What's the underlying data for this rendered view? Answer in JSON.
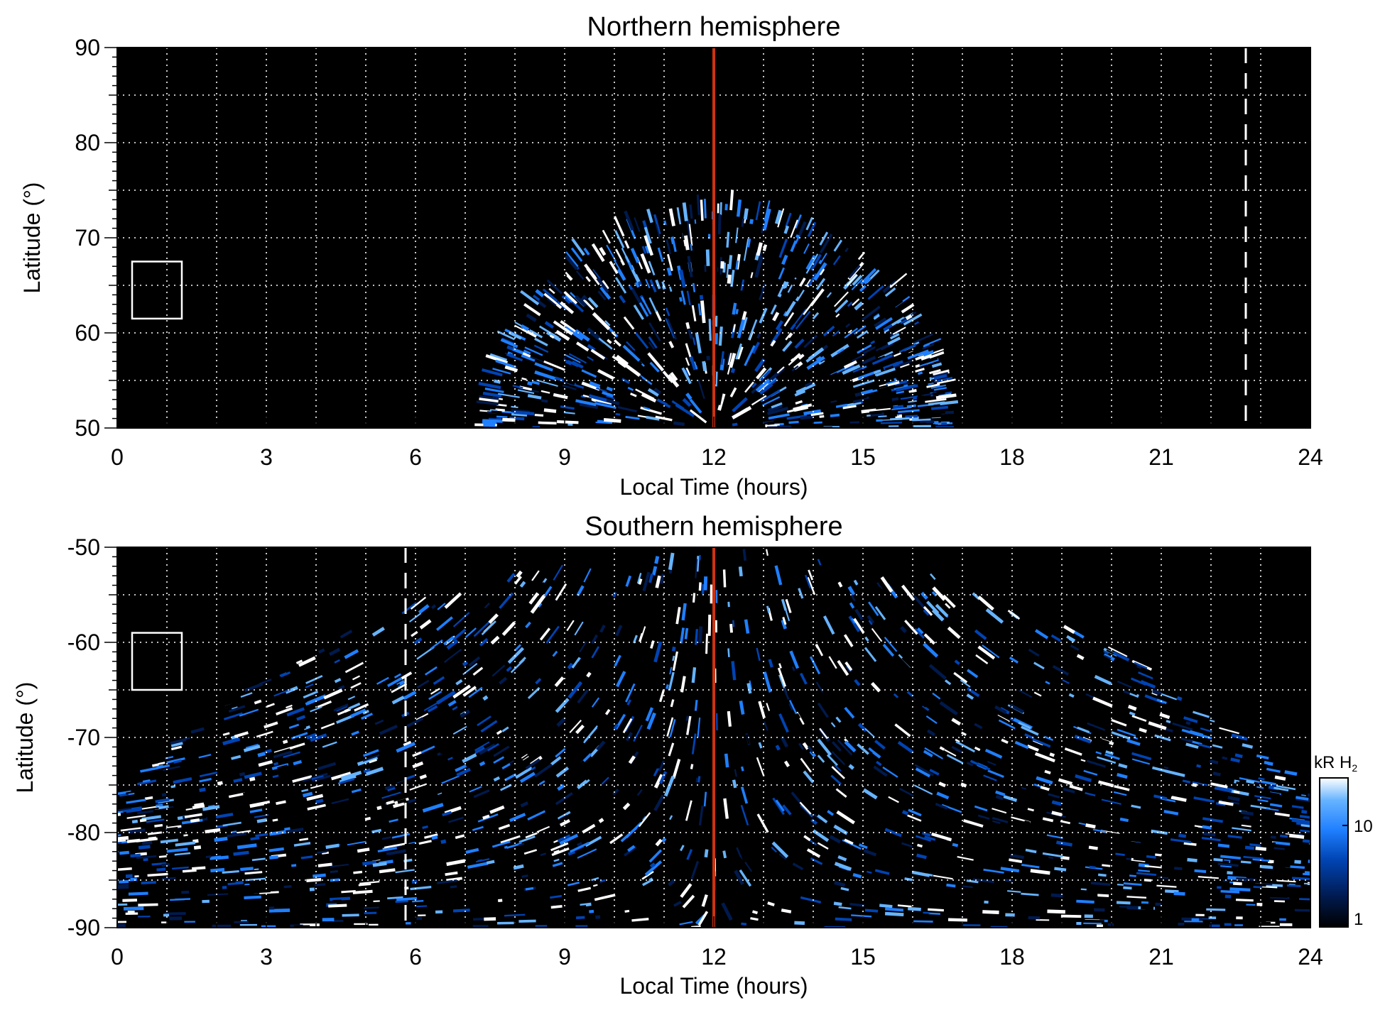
{
  "chart_data": [
    {
      "type": "heatmap",
      "title": "Northern hemisphere",
      "xlabel": "Local Time (hours)",
      "ylabel": "Latitude (°)",
      "xlim": [
        0,
        24
      ],
      "ylim": [
        50,
        90
      ],
      "xticks": [
        "0",
        "3",
        "6",
        "9",
        "12",
        "15",
        "18",
        "21",
        "24"
      ],
      "yticks": [
        "50",
        "60",
        "70",
        "80",
        "90"
      ],
      "grid": true,
      "emission_region": {
        "lt_start": 7.6,
        "lt_end": 16.6,
        "peak_latitude": 73
      },
      "reference_lines": [
        {
          "x": 12,
          "style": "solid",
          "color": "#cc3311"
        },
        {
          "x": 22.7,
          "style": "dashed",
          "color": "#ffffff"
        }
      ],
      "box": {
        "lt_min": 0.3,
        "lt_max": 1.3,
        "lat_min": 61.5,
        "lat_max": 67.5
      }
    },
    {
      "type": "heatmap",
      "title": "Southern hemisphere",
      "xlabel": "Local Time (hours)",
      "ylabel": "Latitude (°)",
      "xlim": [
        0,
        24
      ],
      "ylim": [
        -90,
        -50
      ],
      "xticks": [
        "0",
        "3",
        "6",
        "9",
        "12",
        "15",
        "18",
        "21",
        "24"
      ],
      "yticks": [
        "-50",
        "-60",
        "-70",
        "-80",
        "-90"
      ],
      "grid": true,
      "emission_region": {
        "lt_start": 0,
        "lt_end": 24
      },
      "reference_lines": [
        {
          "x": 12,
          "style": "solid",
          "color": "#cc3311"
        },
        {
          "x": 5.8,
          "style": "dashed",
          "color": "#ffffff"
        }
      ],
      "box": {
        "lt_min": 0.3,
        "lt_max": 1.3,
        "lat_min": -65,
        "lat_max": -59
      }
    }
  ],
  "colorbar": {
    "label": "kR H",
    "label_subscript": "2",
    "ticks": [
      "10",
      "1"
    ],
    "tick_values": [
      10,
      1
    ],
    "range": [
      1,
      30
    ],
    "scale": "log",
    "colors": [
      "#000000",
      "#001a4d",
      "#0044b3",
      "#1f7fff",
      "#66b3ff",
      "#ffffff"
    ]
  }
}
